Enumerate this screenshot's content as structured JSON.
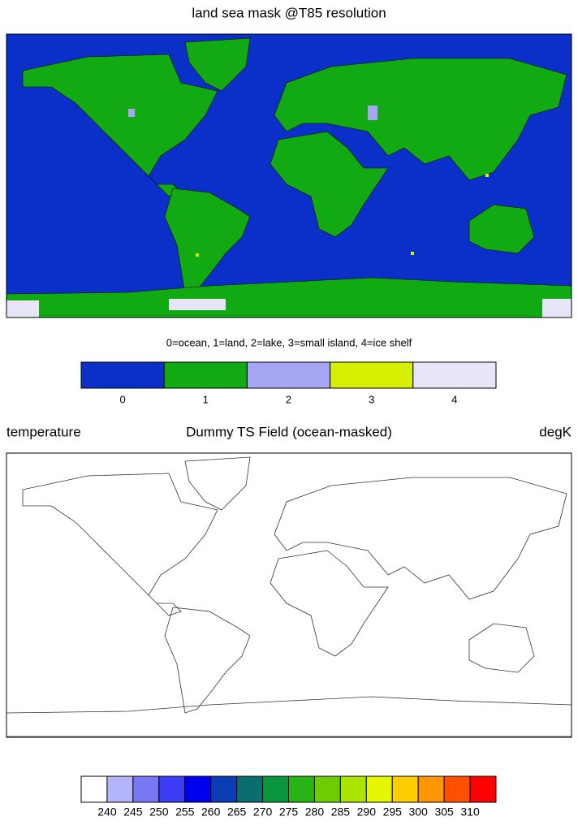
{
  "maps": [
    {
      "title": "land sea mask @T85 resolution",
      "colorbar": {
        "title": "0=ocean, 1=land, 2=lake, 3=small island, 4=ice shelf",
        "ticks": [
          0,
          1,
          2,
          3,
          4
        ],
        "colors": [
          "#0b2fc9",
          "#12aa12",
          "#a6a6f5",
          "#d6ee00",
          "#e6e6f8"
        ]
      }
    },
    {
      "left_string": "temperature",
      "title": "Dummy TS Field (ocean-masked)",
      "right_string": "degK",
      "colorbar": {
        "ticks": [
          240,
          245,
          250,
          255,
          260,
          265,
          270,
          275,
          280,
          285,
          290,
          295,
          300,
          305,
          310
        ],
        "colors": [
          "#ffffff",
          "#b4b4fa",
          "#7878f5",
          "#3c3cf5",
          "#0000f0",
          "#0a3cb4",
          "#0a6e6e",
          "#0a963c",
          "#28b414",
          "#6ecd00",
          "#aae600",
          "#e6f500",
          "#ffcd00",
          "#ff9600",
          "#ff5000",
          "#ff0000"
        ]
      }
    }
  ]
}
